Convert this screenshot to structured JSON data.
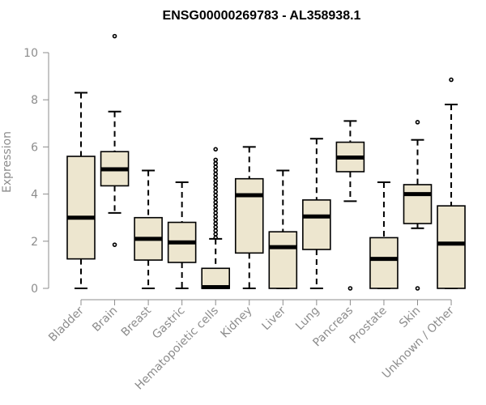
{
  "chart_data": {
    "type": "box",
    "title": "ENSG00000269783 - AL358938.1",
    "ylabel": "Expression",
    "xlabel": "",
    "ylim": [
      0,
      10.5
    ],
    "yticks": [
      0,
      2,
      4,
      6,
      8,
      10
    ],
    "box_fill": "#ede6cf",
    "box_stroke": "#000000",
    "axis_color": "#8c8c8c",
    "categories": [
      "Bladder",
      "Brain",
      "Breast",
      "Gastric",
      "Hematopoietic cells",
      "Kidney",
      "Liver",
      "Lung",
      "Pancreas",
      "Prostate",
      "Skin",
      "Unknown / Other"
    ],
    "boxes": [
      {
        "category": "Bladder",
        "whisker_low": 0.0,
        "q1": 1.25,
        "median": 3.0,
        "q3": 5.6,
        "whisker_high": 8.3,
        "outliers": []
      },
      {
        "category": "Brain",
        "whisker_low": 3.2,
        "q1": 4.35,
        "median": 5.05,
        "q3": 5.8,
        "whisker_high": 7.5,
        "outliers": [
          1.85,
          10.7
        ]
      },
      {
        "category": "Breast",
        "whisker_low": 0.0,
        "q1": 1.2,
        "median": 2.1,
        "q3": 3.0,
        "whisker_high": 5.0,
        "outliers": []
      },
      {
        "category": "Gastric",
        "whisker_low": 0.0,
        "q1": 1.1,
        "median": 1.95,
        "q3": 2.8,
        "whisker_high": 4.5,
        "outliers": []
      },
      {
        "category": "Hematopoietic cells",
        "whisker_low": 0.0,
        "q1": 0.0,
        "median": 0.05,
        "q3": 0.85,
        "whisker_high": 2.1,
        "outliers": [
          2.15,
          2.3,
          2.45,
          2.6,
          2.75,
          2.9,
          3.05,
          3.2,
          3.35,
          3.5,
          3.65,
          3.8,
          3.95,
          4.1,
          4.25,
          4.4,
          4.55,
          4.7,
          4.85,
          5.0,
          5.15,
          5.3,
          5.45,
          5.9
        ]
      },
      {
        "category": "Kidney",
        "whisker_low": 0.0,
        "q1": 1.5,
        "median": 3.95,
        "q3": 4.65,
        "whisker_high": 6.0,
        "outliers": []
      },
      {
        "category": "Liver",
        "whisker_low": 0.0,
        "q1": 0.0,
        "median": 1.75,
        "q3": 2.4,
        "whisker_high": 5.0,
        "outliers": []
      },
      {
        "category": "Lung",
        "whisker_low": 0.0,
        "q1": 1.65,
        "median": 3.05,
        "q3": 3.75,
        "whisker_high": 6.35,
        "outliers": []
      },
      {
        "category": "Pancreas",
        "whisker_low": 3.7,
        "q1": 4.95,
        "median": 5.55,
        "q3": 6.2,
        "whisker_high": 7.1,
        "outliers": [
          0.0
        ]
      },
      {
        "category": "Prostate",
        "whisker_low": 0.0,
        "q1": 0.0,
        "median": 1.25,
        "q3": 2.15,
        "whisker_high": 4.5,
        "outliers": []
      },
      {
        "category": "Skin",
        "whisker_low": 2.55,
        "q1": 2.75,
        "median": 4.0,
        "q3": 4.4,
        "whisker_high": 6.3,
        "outliers": [
          0.0,
          7.05
        ]
      },
      {
        "category": "Unknown / Other",
        "whisker_low": 0.0,
        "q1": 0.0,
        "median": 1.9,
        "q3": 3.5,
        "whisker_high": 7.8,
        "outliers": [
          8.85
        ]
      }
    ]
  }
}
